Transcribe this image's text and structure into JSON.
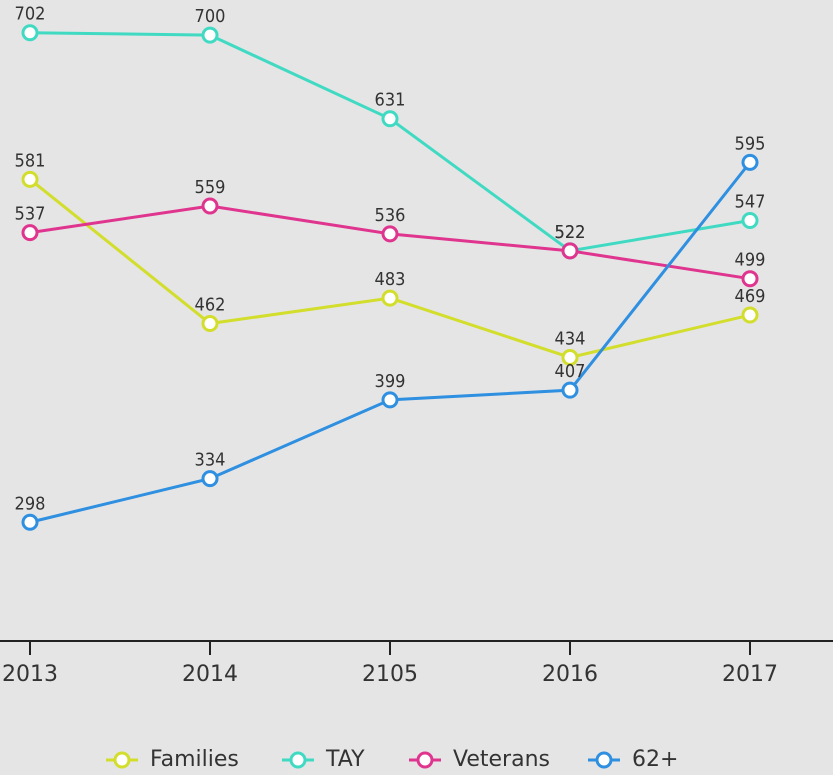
{
  "chart_data": {
    "type": "line",
    "categories": [
      "2013",
      "2014",
      "2105",
      "2016",
      "2017"
    ],
    "series": [
      {
        "name": "Families",
        "color": "#d2de2b",
        "values": [
          581,
          462,
          483,
          434,
          469
        ]
      },
      {
        "name": "TAY",
        "color": "#40dac3",
        "values": [
          702,
          700,
          631,
          522,
          547
        ]
      },
      {
        "name": "Veterans",
        "color": "#e0358f",
        "values": [
          537,
          559,
          536,
          522,
          499
        ]
      },
      {
        "name": "62+",
        "color": "#2f8fe0",
        "values": [
          298,
          334,
          399,
          407,
          595
        ]
      }
    ],
    "ylim": [
      200,
      729
    ],
    "legend": "bottom"
  }
}
